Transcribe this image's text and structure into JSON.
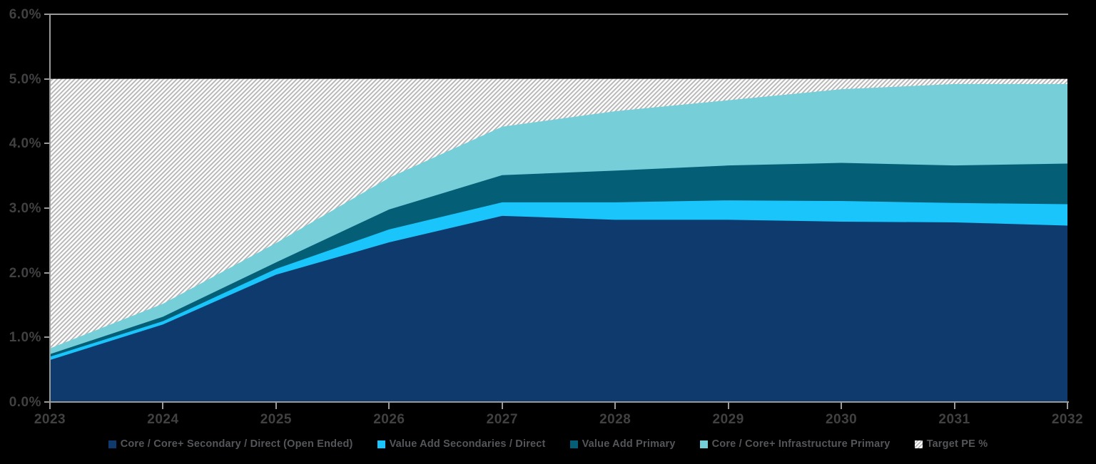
{
  "colors": {
    "background": "#000000",
    "axis_line": "#9a9a9b",
    "axis_label": "#414042",
    "legend_text": "#54565a",
    "hatch_stripe": "#b6b6b7",
    "hatch_background": "#ffffff",
    "series_core_secondary": "#0f3a6e",
    "series_value_add_secondaries": "#19c5fa",
    "series_value_add_primary": "#045e76",
    "series_core_infrastructure": "#75ced8"
  },
  "axes": {
    "y_tick_labels": [
      "6.0%",
      "5.0%",
      "4.0%",
      "3.0%",
      "2.0%",
      "1.0%",
      "0.0%"
    ],
    "x_tick_labels": [
      "2023",
      "2024",
      "2025",
      "2026",
      "2027",
      "2028",
      "2029",
      "2030",
      "2031",
      "2032"
    ]
  },
  "chart_data": {
    "type": "area",
    "stacked": true,
    "title": "",
    "xlabel": "",
    "ylabel": "",
    "ylim": [
      0,
      6
    ],
    "grid": false,
    "legend_position": "bottom-center",
    "x": [
      2023,
      2024,
      2025,
      2026,
      2027,
      2028,
      2029,
      2030,
      2031,
      2032
    ],
    "series": [
      {
        "name": "Core / Core+ Secondary / Direct (Open Ended)",
        "color": "#0f3a6e",
        "values": [
          0.65,
          1.2,
          1.97,
          2.47,
          2.88,
          2.82,
          2.82,
          2.79,
          2.78,
          2.73
        ]
      },
      {
        "name": "Value Add Secondaries / Direct",
        "color": "#19c5fa",
        "values": [
          0.05,
          0.05,
          0.09,
          0.2,
          0.21,
          0.27,
          0.3,
          0.32,
          0.3,
          0.33
        ]
      },
      {
        "name": "Value Add Primary",
        "color": "#045e76",
        "values": [
          0.04,
          0.07,
          0.1,
          0.31,
          0.42,
          0.49,
          0.54,
          0.59,
          0.58,
          0.63
        ]
      },
      {
        "name": "Core / Core+ Infrastructure Primary",
        "color": "#75ced8",
        "values": [
          0.09,
          0.2,
          0.3,
          0.49,
          0.75,
          0.92,
          1.01,
          1.14,
          1.26,
          1.23
        ]
      },
      {
        "name": "Target PE %",
        "pattern": "diagonal-hatch",
        "band": true,
        "values": [
          5.0,
          5.0,
          5.0,
          5.0,
          5.0,
          5.0,
          5.0,
          5.0,
          5.0,
          5.0
        ]
      }
    ]
  },
  "legend": {
    "items": [
      {
        "label": "Core / Core+ Secondary / Direct (Open Ended)",
        "swatch": "#0f3a6e"
      },
      {
        "label": "Value Add Secondaries / Direct",
        "swatch": "#19c5fa"
      },
      {
        "label": "Value Add Primary",
        "swatch": "#045e76"
      },
      {
        "label": "Core / Core+ Infrastructure Primary",
        "swatch": "#75ced8"
      },
      {
        "label": "Target PE %",
        "swatch": "hatch"
      }
    ]
  }
}
